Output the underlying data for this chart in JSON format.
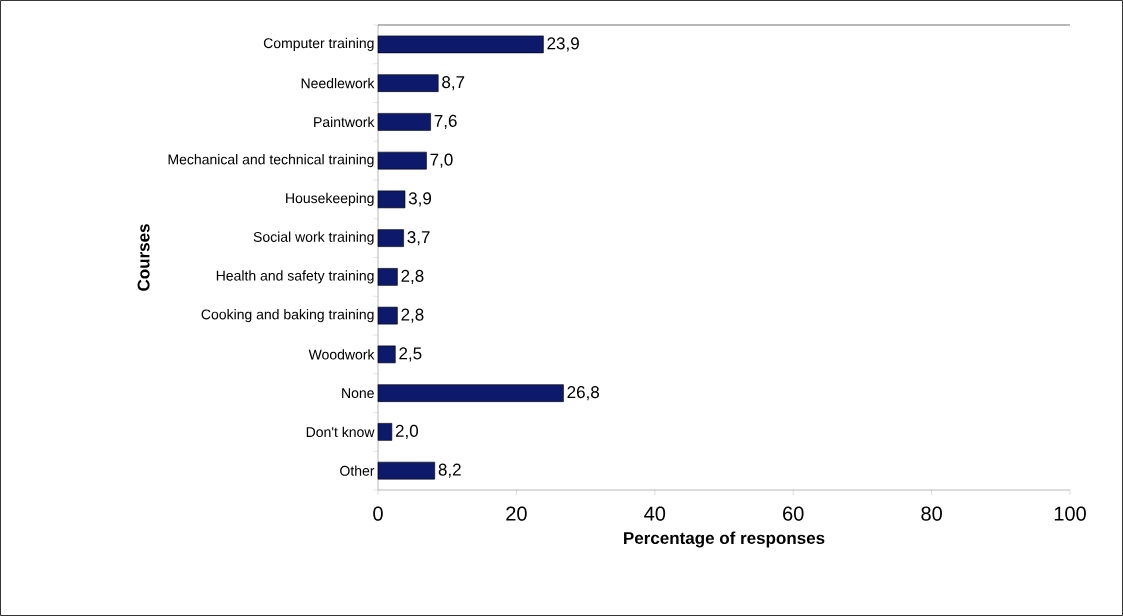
{
  "chart_data": {
    "type": "bar",
    "orientation": "horizontal",
    "xlabel": "Percentage of responses",
    "ylabel": "Courses",
    "categories": [
      "Computer training",
      "Needlework",
      "Paintwork",
      "Mechanical and technical training",
      "Housekeeping",
      "Social work training",
      "Health and safety training",
      "Cooking and baking training",
      "Woodwork",
      "None",
      "Don't know",
      "Other"
    ],
    "values": [
      23.9,
      8.7,
      7.6,
      7.0,
      3.9,
      3.7,
      2.8,
      2.8,
      2.5,
      26.8,
      2.0,
      8.2
    ],
    "value_labels": [
      "23,9",
      "8,7",
      "7,6",
      "7,0",
      "3,9",
      "3,7",
      "2,8",
      "2,8",
      "2,5",
      "26,8",
      "2,0",
      "8,2"
    ],
    "color": "#0d1a6b",
    "xlim": [
      0,
      100
    ],
    "xticks": [
      0,
      20,
      40,
      60,
      80,
      100
    ],
    "grid": false
  }
}
